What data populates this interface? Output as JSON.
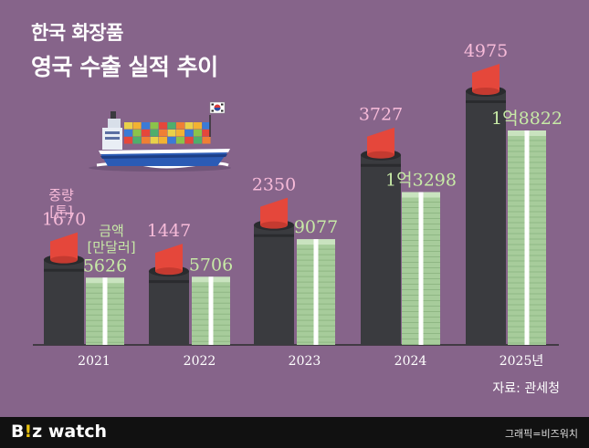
{
  "title_line1": "한국 화장품",
  "title_line2": "영국 수출 실적 추이",
  "unit_weight": "중량\n[톤]",
  "unit_amount": "금액\n[만달러]",
  "source": "자료: 관세청",
  "footer": {
    "logo_b": "B",
    "logo_excl": "!",
    "logo_rest": "z watch",
    "credit": "그래픽=비즈워치"
  },
  "colors": {
    "background": "#86648a",
    "lipstick_body": "#3a3b3f",
    "lipstick_tip": "#e5473b",
    "money": "#a7cc9b",
    "weight_label": "#f7bbd9",
    "amount_label": "#c7eaa6"
  },
  "icons": [
    "cargo-ship-icon",
    "korea-flag-icon"
  ],
  "chart_data": {
    "type": "bar",
    "categories": [
      "2021",
      "2022",
      "2023",
      "2024",
      "2025년"
    ],
    "series": [
      {
        "name": "중량 [톤]",
        "values": [
          1670,
          1447,
          2350,
          3727,
          4975
        ],
        "labels": [
          "1670",
          "1447",
          "2350",
          "3727",
          "4975"
        ]
      },
      {
        "name": "금액 [만달러]",
        "values": [
          5626,
          5706,
          9077,
          13298,
          18822
        ],
        "labels": [
          "5626",
          "5706",
          "9077",
          "1억3298",
          "1억8822"
        ]
      }
    ]
  }
}
